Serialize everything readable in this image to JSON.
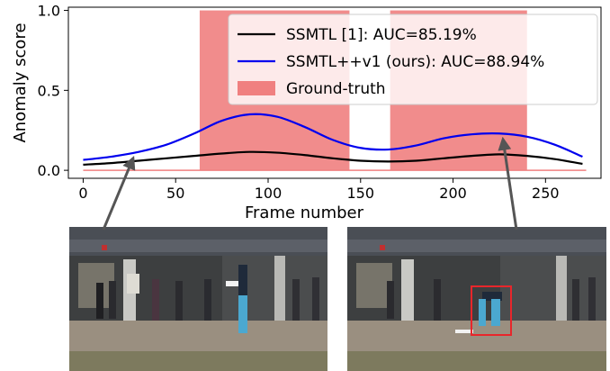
{
  "chart_data": {
    "type": "line",
    "title": "",
    "xlabel": "Frame number",
    "ylabel": "Anomaly score",
    "xlim": [
      -8,
      280
    ],
    "ylim": [
      -0.05,
      1.02
    ],
    "xticks": [
      0,
      50,
      100,
      150,
      200,
      250
    ],
    "yticks": [
      0.0,
      0.5,
      1.0
    ],
    "xtick_labels": [
      "0",
      "50",
      "100",
      "150",
      "200",
      "250"
    ],
    "ytick_labels": [
      "0.0",
      "0.5",
      "1.0"
    ],
    "legend_position": "top-right",
    "series": [
      {
        "name": "SSMTL [1]: AUC=85.19%",
        "color": "#000000",
        "x": [
          0,
          15,
          30,
          45,
          60,
          75,
          90,
          105,
          120,
          135,
          150,
          165,
          180,
          195,
          210,
          225,
          240,
          255,
          270
        ],
        "y": [
          0.035,
          0.045,
          0.06,
          0.075,
          0.09,
          0.105,
          0.115,
          0.11,
          0.095,
          0.075,
          0.06,
          0.055,
          0.06,
          0.075,
          0.09,
          0.1,
          0.09,
          0.07,
          0.04
        ]
      },
      {
        "name": "SSMTL++v1 (ours): AUC=88.94%",
        "color": "#0000ee",
        "x": [
          0,
          15,
          30,
          45,
          60,
          75,
          90,
          105,
          120,
          135,
          150,
          165,
          180,
          195,
          210,
          225,
          240,
          255,
          270
        ],
        "y": [
          0.065,
          0.085,
          0.115,
          0.16,
          0.23,
          0.31,
          0.35,
          0.335,
          0.27,
          0.19,
          0.14,
          0.13,
          0.155,
          0.2,
          0.225,
          0.23,
          0.21,
          0.16,
          0.085
        ]
      }
    ],
    "ground_truth": {
      "name": "Ground-truth",
      "color": "#f08080",
      "intervals": [
        [
          63,
          144
        ],
        [
          166,
          240
        ]
      ],
      "value": 1.0
    },
    "arrows": [
      {
        "target_frame": 27
      },
      {
        "target_frame": 227
      }
    ]
  }
}
